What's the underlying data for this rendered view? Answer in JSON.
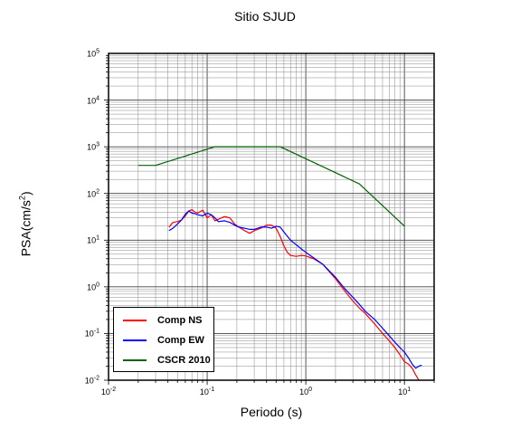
{
  "chart_data": {
    "type": "line",
    "title": "Sitio SJUD",
    "xlabel": "Periodo (s)",
    "ylabel_base": "PSA(cm/s",
    "ylabel_sup": "2",
    "ylabel_end": ")",
    "xscale": "log",
    "yscale": "log",
    "xlim": [
      0.01,
      20
    ],
    "ylim": [
      0.01,
      100000
    ],
    "grid": true,
    "legend_position": "bottom-left",
    "x_ticks": [
      {
        "base": "10",
        "exp": "-2",
        "value": 0.01
      },
      {
        "base": "10",
        "exp": "-1",
        "value": 0.1
      },
      {
        "base": "10",
        "exp": "0",
        "value": 1
      },
      {
        "base": "10",
        "exp": "1",
        "value": 10
      }
    ],
    "y_ticks": [
      {
        "base": "10",
        "exp": "-2",
        "value": 0.01
      },
      {
        "base": "10",
        "exp": "-1",
        "value": 0.1
      },
      {
        "base": "10",
        "exp": "0",
        "value": 1
      },
      {
        "base": "10",
        "exp": "1",
        "value": 10
      },
      {
        "base": "10",
        "exp": "2",
        "value": 100
      },
      {
        "base": "10",
        "exp": "3",
        "value": 1000
      },
      {
        "base": "10",
        "exp": "4",
        "value": 10000
      },
      {
        "base": "10",
        "exp": "5",
        "value": 100000
      }
    ],
    "series": [
      {
        "name": "Comp NS",
        "color": "#ff0000",
        "points": [
          [
            0.041,
            19
          ],
          [
            0.045,
            24
          ],
          [
            0.05,
            25
          ],
          [
            0.055,
            27
          ],
          [
            0.06,
            33
          ],
          [
            0.065,
            42
          ],
          [
            0.07,
            45
          ],
          [
            0.075,
            40
          ],
          [
            0.08,
            38
          ],
          [
            0.09,
            44
          ],
          [
            0.1,
            30
          ],
          [
            0.11,
            35
          ],
          [
            0.12,
            26
          ],
          [
            0.13,
            28
          ],
          [
            0.15,
            32
          ],
          [
            0.17,
            30
          ],
          [
            0.19,
            22
          ],
          [
            0.21,
            19
          ],
          [
            0.24,
            16
          ],
          [
            0.27,
            14
          ],
          [
            0.3,
            16
          ],
          [
            0.35,
            18
          ],
          [
            0.4,
            21
          ],
          [
            0.45,
            21
          ],
          [
            0.5,
            18
          ],
          [
            0.55,
            12
          ],
          [
            0.6,
            7.5
          ],
          [
            0.65,
            5.5
          ],
          [
            0.7,
            4.7
          ],
          [
            0.8,
            4.5
          ],
          [
            0.9,
            4.7
          ],
          [
            1.0,
            4.6
          ],
          [
            1.2,
            4.0
          ],
          [
            1.5,
            3.0
          ],
          [
            2.0,
            1.5
          ],
          [
            2.5,
            0.8
          ],
          [
            3.0,
            0.5
          ],
          [
            3.5,
            0.35
          ],
          [
            4.0,
            0.27
          ],
          [
            5.0,
            0.16
          ],
          [
            6.0,
            0.1
          ],
          [
            7.0,
            0.07
          ],
          [
            8.0,
            0.05
          ],
          [
            9.0,
            0.035
          ],
          [
            10.0,
            0.025
          ],
          [
            11.0,
            0.022
          ],
          [
            12.0,
            0.018
          ],
          [
            13.0,
            0.013
          ],
          [
            14.0,
            0.01
          ]
        ]
      },
      {
        "name": "Comp EW",
        "color": "#0000ff",
        "points": [
          [
            0.041,
            16
          ],
          [
            0.045,
            18
          ],
          [
            0.05,
            22
          ],
          [
            0.055,
            27
          ],
          [
            0.06,
            36
          ],
          [
            0.065,
            42
          ],
          [
            0.07,
            38
          ],
          [
            0.075,
            37
          ],
          [
            0.08,
            35
          ],
          [
            0.09,
            33
          ],
          [
            0.1,
            38
          ],
          [
            0.11,
            35
          ],
          [
            0.12,
            30
          ],
          [
            0.13,
            25
          ],
          [
            0.15,
            26
          ],
          [
            0.17,
            24
          ],
          [
            0.19,
            21
          ],
          [
            0.21,
            19
          ],
          [
            0.24,
            18
          ],
          [
            0.27,
            17
          ],
          [
            0.3,
            17
          ],
          [
            0.35,
            19
          ],
          [
            0.4,
            19
          ],
          [
            0.45,
            18
          ],
          [
            0.5,
            20
          ],
          [
            0.55,
            19
          ],
          [
            0.6,
            15
          ],
          [
            0.7,
            10
          ],
          [
            0.8,
            8
          ],
          [
            0.9,
            6.5
          ],
          [
            1.0,
            5.5
          ],
          [
            1.2,
            4.2
          ],
          [
            1.5,
            3.0
          ],
          [
            2.0,
            1.6
          ],
          [
            2.5,
            0.9
          ],
          [
            3.0,
            0.6
          ],
          [
            3.5,
            0.42
          ],
          [
            4.0,
            0.3
          ],
          [
            5.0,
            0.2
          ],
          [
            6.0,
            0.13
          ],
          [
            7.0,
            0.09
          ],
          [
            8.0,
            0.065
          ],
          [
            9.0,
            0.05
          ],
          [
            10.0,
            0.04
          ],
          [
            11.0,
            0.03
          ],
          [
            12.0,
            0.022
          ],
          [
            13.0,
            0.018
          ],
          [
            14.0,
            0.02
          ],
          [
            15.0,
            0.021
          ]
        ]
      },
      {
        "name": "CSCR 2010",
        "color": "#006400",
        "points": [
          [
            0.02,
            400
          ],
          [
            0.03,
            400
          ],
          [
            0.12,
            1000
          ],
          [
            0.55,
            1000
          ],
          [
            3.5,
            160
          ],
          [
            10.0,
            20
          ]
        ]
      }
    ]
  }
}
